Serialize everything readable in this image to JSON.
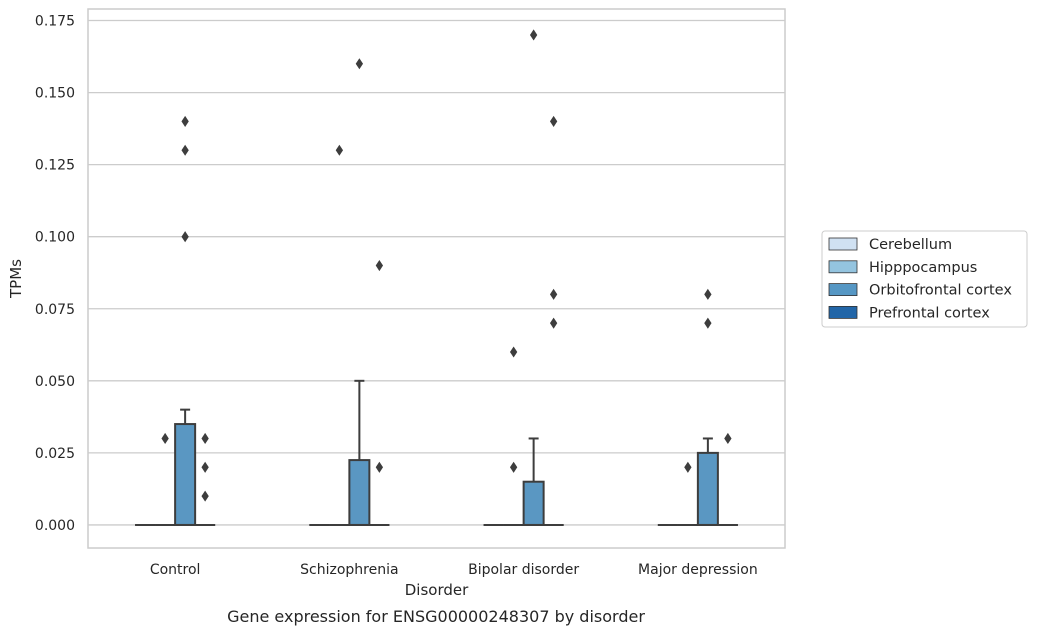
{
  "chart_data": {
    "type": "box",
    "xlabel": "Disorder",
    "ylabel": "TPMs",
    "caption": "Gene expression for ENSG00000248307 by disorder",
    "categories": [
      "Control",
      "Schizophrenia",
      "Bipolar disorder",
      "Major depression"
    ],
    "ylim": [
      -0.008,
      0.179
    ],
    "yticks": [
      0.0,
      0.025,
      0.05,
      0.075,
      0.1,
      0.125,
      0.15,
      0.175
    ],
    "ytick_labels": [
      "0.000",
      "0.025",
      "0.050",
      "0.075",
      "0.100",
      "0.125",
      "0.150",
      "0.175"
    ],
    "grid": true,
    "legend_position": "right",
    "series": [
      {
        "name": "Cerebellum",
        "color": "#d0e1f2",
        "boxes": [
          {
            "q1": 0,
            "median": 0,
            "q3": 0,
            "whislo": 0,
            "whishi": 0,
            "fliers": []
          },
          {
            "q1": 0,
            "median": 0,
            "q3": 0,
            "whislo": 0,
            "whishi": 0,
            "fliers": []
          },
          {
            "q1": 0,
            "median": 0,
            "q3": 0,
            "whislo": 0,
            "whishi": 0,
            "fliers": []
          },
          {
            "q1": 0,
            "median": 0,
            "q3": 0,
            "whislo": 0,
            "whishi": 0,
            "fliers": []
          }
        ]
      },
      {
        "name": "Hipppocampus",
        "color": "#94c4df",
        "boxes": [
          {
            "q1": 0,
            "median": 0,
            "q3": 0,
            "whislo": 0,
            "whishi": 0,
            "fliers": [
              0.03
            ]
          },
          {
            "q1": 0,
            "median": 0,
            "q3": 0,
            "whislo": 0,
            "whishi": 0,
            "fliers": [
              0.13
            ]
          },
          {
            "q1": 0,
            "median": 0,
            "q3": 0,
            "whislo": 0,
            "whishi": 0,
            "fliers": [
              0.02,
              0.06
            ]
          },
          {
            "q1": 0,
            "median": 0,
            "q3": 0,
            "whislo": 0,
            "whishi": 0,
            "fliers": [
              0.02
            ]
          }
        ]
      },
      {
        "name": "Orbitofrontal cortex",
        "color": "#4a98c9",
        "boxes": [
          {
            "q1": 0,
            "median": 0,
            "q3": 0.035,
            "whislo": 0,
            "whishi": 0.04,
            "fliers": [
              0.1,
              0.13,
              0.14
            ]
          },
          {
            "q1": 0,
            "median": 0,
            "q3": 0.0225,
            "whislo": 0,
            "whishi": 0.05,
            "fliers": [
              0.16
            ]
          },
          {
            "q1": 0,
            "median": 0,
            "q3": 0.015,
            "whislo": 0,
            "whishi": 0.03,
            "fliers": [
              0.17
            ]
          },
          {
            "q1": 0,
            "median": 0,
            "q3": 0.025,
            "whislo": 0,
            "whishi": 0.03,
            "fliers": [
              0.07,
              0.08
            ]
          }
        ]
      },
      {
        "name": "Prefrontal cortex",
        "color": "#1764ab",
        "boxes": [
          {
            "q1": 0,
            "median": 0,
            "q3": 0,
            "whislo": 0,
            "whishi": 0,
            "fliers": [
              0.01,
              0.02,
              0.03
            ]
          },
          {
            "q1": 0,
            "median": 0,
            "q3": 0,
            "whislo": 0,
            "whishi": 0,
            "fliers": [
              0.02,
              0.09
            ]
          },
          {
            "q1": 0,
            "median": 0,
            "q3": 0,
            "whislo": 0,
            "whishi": 0,
            "fliers": [
              0.07,
              0.08,
              0.14
            ]
          },
          {
            "q1": 0,
            "median": 0,
            "q3": 0,
            "whislo": 0,
            "whishi": 0,
            "fliers": [
              0.03
            ]
          }
        ]
      }
    ],
    "legend_colors": [
      "#d0e1f2",
      "#94c4df",
      "#5697c4",
      "#2266a8"
    ],
    "box_fill_color": "#5a97c2"
  }
}
